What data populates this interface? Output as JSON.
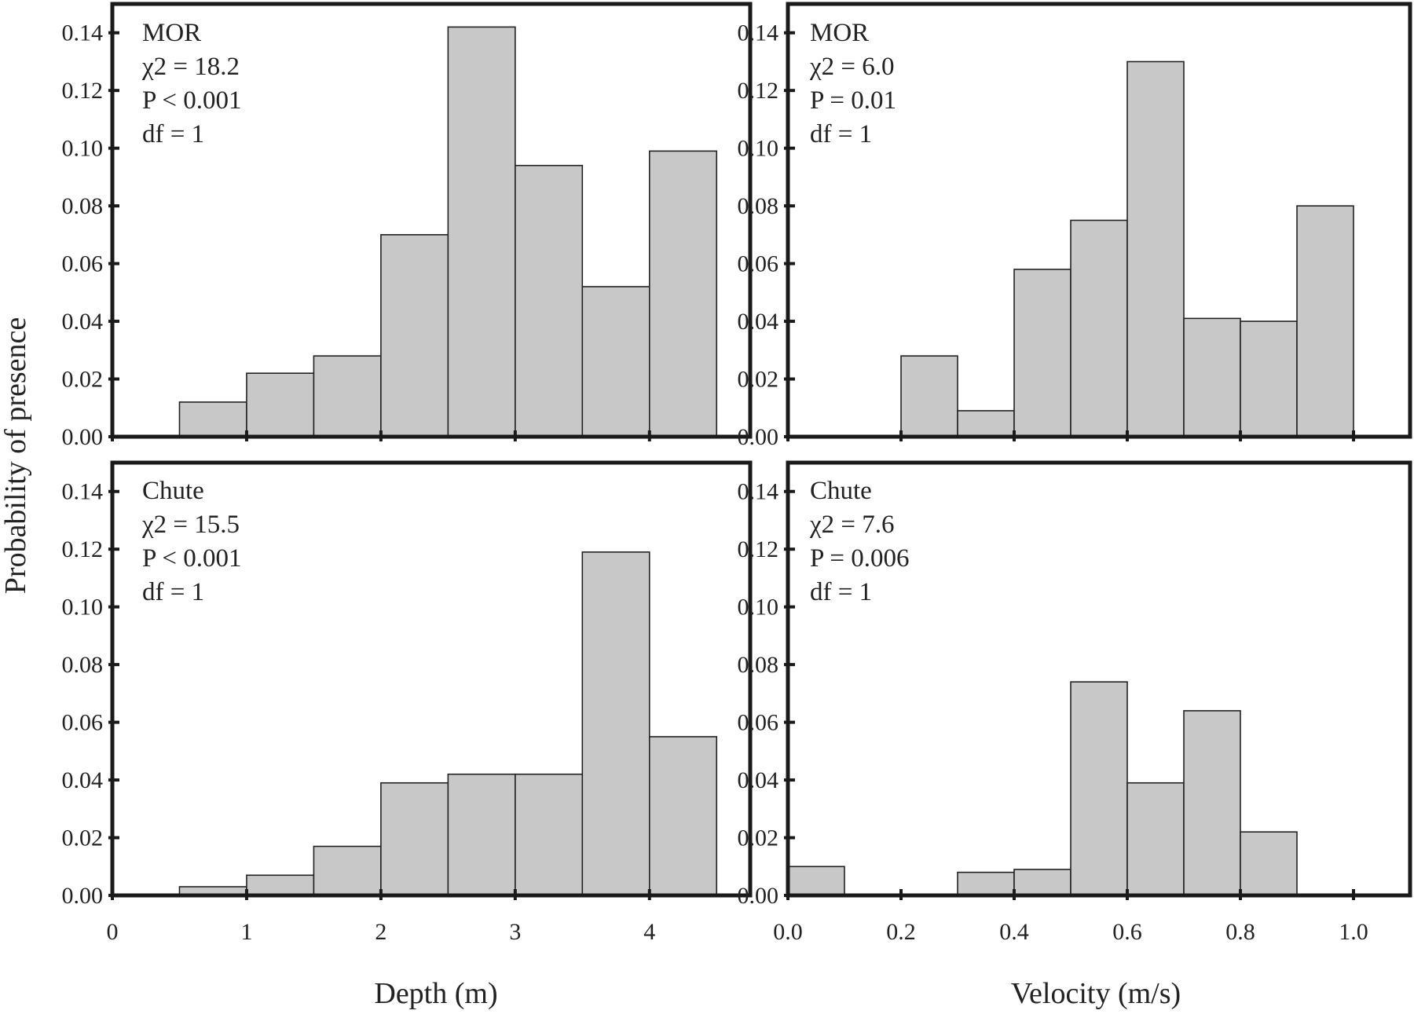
{
  "figure": {
    "ylabel": "Probability of presence",
    "xlabels": {
      "depth": "Depth (m)",
      "velocity": "Velocity (m/s)"
    }
  },
  "chart_data": [
    {
      "type": "bar",
      "panel": "top-left",
      "xlabel": "Depth (m)",
      "ylabel": "Probability of presence",
      "xlim": [
        0,
        4.75
      ],
      "ylim": [
        0,
        0.15
      ],
      "xticks": [
        "0",
        "1",
        "2",
        "3",
        "4"
      ],
      "yticks": [
        "0.00",
        "0.02",
        "0.04",
        "0.06",
        "0.08",
        "0.10",
        "0.12",
        "0.14"
      ],
      "bin_edges": [
        0.5,
        1.0,
        1.5,
        2.0,
        2.5,
        3.0,
        3.5,
        4.0,
        4.5
      ],
      "values": [
        0.012,
        0.022,
        0.028,
        0.07,
        0.142,
        0.094,
        0.052,
        0.099
      ],
      "annotation": [
        "MOR",
        "χ2 = 18.2",
        "P < 0.001",
        "df = 1"
      ]
    },
    {
      "type": "bar",
      "panel": "top-right",
      "xlabel": "Velocity (m/s)",
      "ylabel": "Probability of presence",
      "xlim": [
        0,
        1.1
      ],
      "ylim": [
        0,
        0.15
      ],
      "xticks": [
        "0.0",
        "0.2",
        "0.4",
        "0.6",
        "0.8",
        "1.0"
      ],
      "yticks": [
        "0.00",
        "0.02",
        "0.04",
        "0.06",
        "0.08",
        "0.10",
        "0.12",
        "0.14"
      ],
      "bin_edges": [
        0.2,
        0.3,
        0.4,
        0.5,
        0.6,
        0.7,
        0.8,
        0.9,
        1.0
      ],
      "values": [
        0.028,
        0.009,
        0.058,
        0.075,
        0.13,
        0.041,
        0.04,
        0.08
      ],
      "annotation": [
        "MOR",
        "χ2 = 6.0",
        "P = 0.01",
        "df = 1"
      ]
    },
    {
      "type": "bar",
      "panel": "bottom-left",
      "xlabel": "Depth (m)",
      "ylabel": "Probability of presence",
      "xlim": [
        0,
        4.75
      ],
      "ylim": [
        0,
        0.15
      ],
      "xticks": [
        "0",
        "1",
        "2",
        "3",
        "4"
      ],
      "yticks": [
        "0.00",
        "0.02",
        "0.04",
        "0.06",
        "0.08",
        "0.10",
        "0.12",
        "0.14"
      ],
      "bin_edges": [
        0.5,
        1.0,
        1.5,
        2.0,
        2.5,
        3.0,
        3.5,
        4.0,
        4.5
      ],
      "values": [
        0.003,
        0.007,
        0.017,
        0.039,
        0.042,
        0.042,
        0.119,
        0.055
      ],
      "annotation": [
        "Chute",
        "χ2 = 15.5",
        "P < 0.001",
        "df = 1"
      ]
    },
    {
      "type": "bar",
      "panel": "bottom-right",
      "xlabel": "Velocity (m/s)",
      "ylabel": "Probability of presence",
      "xlim": [
        0,
        1.1
      ],
      "ylim": [
        0,
        0.15
      ],
      "xticks": [
        "0.0",
        "0.2",
        "0.4",
        "0.6",
        "0.8",
        "1.0"
      ],
      "yticks": [
        "0.00",
        "0.02",
        "0.04",
        "0.06",
        "0.08",
        "0.10",
        "0.12",
        "0.14"
      ],
      "bin_edges": [
        0.0,
        0.1,
        0.2,
        0.3,
        0.4,
        0.5,
        0.6,
        0.7,
        0.8,
        0.9
      ],
      "values": [
        0.01,
        0.0,
        0.0,
        0.008,
        0.009,
        0.074,
        0.039,
        0.064,
        0.022
      ],
      "annotation": [
        "Chute",
        "χ2 = 7.6",
        "P = 0.006",
        "df = 1"
      ]
    }
  ]
}
